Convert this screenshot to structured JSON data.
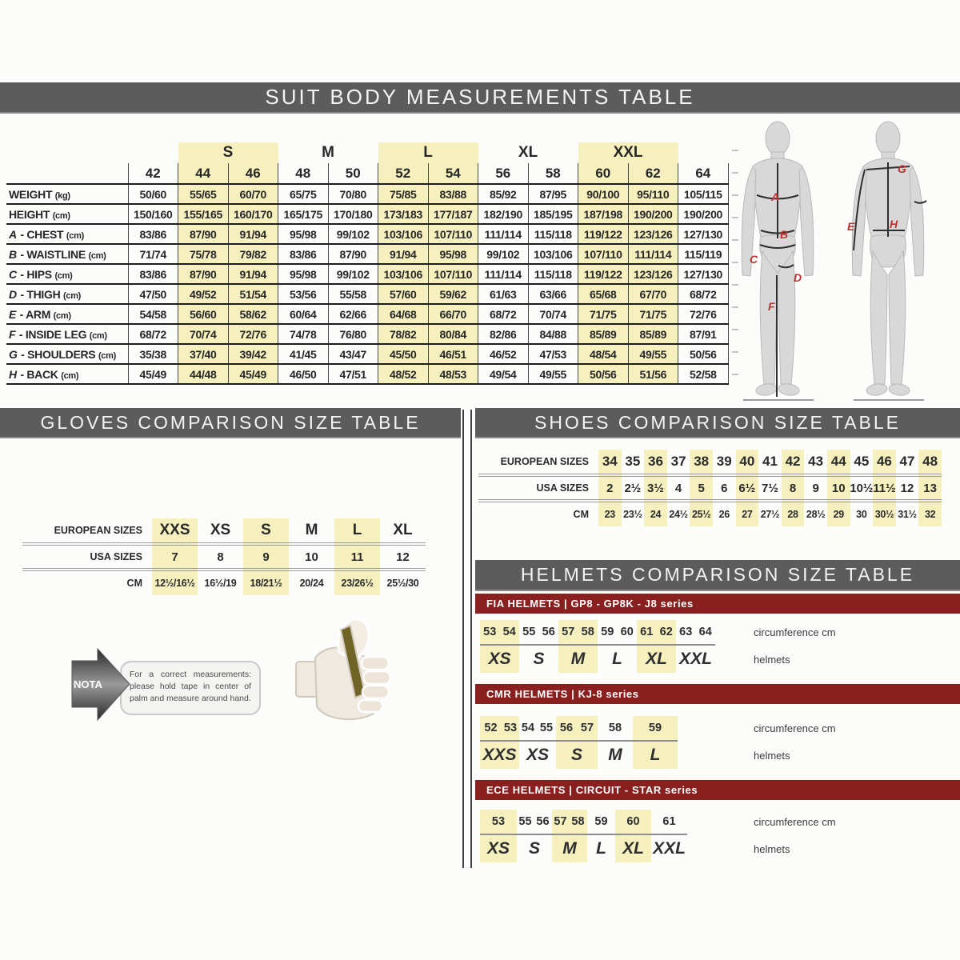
{
  "colors": {
    "header_bar": "#5c5c5c",
    "helmet_series_bar": "#8a1f1f",
    "highlight_yellow": "#f6f0bf",
    "figure_letter_red": "#c03030"
  },
  "suit": {
    "title": "SUIT BODY MEASUREMENTS TABLE",
    "groups": [
      {
        "label": "S",
        "span": 2,
        "highlight": true
      },
      {
        "label": "M",
        "span": 2,
        "highlight": false
      },
      {
        "label": "L",
        "span": 2,
        "highlight": true
      },
      {
        "label": "XL",
        "span": 2,
        "highlight": false
      },
      {
        "label": "XXL",
        "span": 2,
        "highlight": true
      }
    ],
    "sizes": [
      "42",
      "44",
      "46",
      "48",
      "50",
      "52",
      "54",
      "56",
      "58",
      "60",
      "62",
      "64"
    ],
    "highlight_columns": [
      1,
      2,
      5,
      6,
      9,
      10
    ],
    "rows": [
      {
        "prefix": "",
        "label": "WEIGHT",
        "unit": "(kg)",
        "values": [
          "50/60",
          "55/65",
          "60/70",
          "65/75",
          "70/80",
          "75/85",
          "83/88",
          "85/92",
          "87/95",
          "90/100",
          "95/110",
          "105/115"
        ]
      },
      {
        "prefix": "",
        "label": "HEIGHT",
        "unit": "(cm)",
        "values": [
          "150/160",
          "155/165",
          "160/170",
          "165/175",
          "170/180",
          "173/183",
          "177/187",
          "182/190",
          "185/195",
          "187/198",
          "190/200",
          "190/200"
        ]
      },
      {
        "prefix": "A",
        "label": "CHEST",
        "unit": "(cm)",
        "values": [
          "83/86",
          "87/90",
          "91/94",
          "95/98",
          "99/102",
          "103/106",
          "107/110",
          "111/114",
          "115/118",
          "119/122",
          "123/126",
          "127/130"
        ]
      },
      {
        "prefix": "B",
        "label": "WAISTLINE",
        "unit": "(cm)",
        "values": [
          "71/74",
          "75/78",
          "79/82",
          "83/86",
          "87/90",
          "91/94",
          "95/98",
          "99/102",
          "103/106",
          "107/110",
          "111/114",
          "115/119"
        ]
      },
      {
        "prefix": "C",
        "label": "HIPS",
        "unit": "(cm)",
        "values": [
          "83/86",
          "87/90",
          "91/94",
          "95/98",
          "99/102",
          "103/106",
          "107/110",
          "111/114",
          "115/118",
          "119/122",
          "123/126",
          "127/130"
        ]
      },
      {
        "prefix": "D",
        "label": "THIGH",
        "unit": "(cm)",
        "values": [
          "47/50",
          "49/52",
          "51/54",
          "53/56",
          "55/58",
          "57/60",
          "59/62",
          "61/63",
          "63/66",
          "65/68",
          "67/70",
          "68/72"
        ]
      },
      {
        "prefix": "E",
        "label": "ARM",
        "unit": "(cm)",
        "values": [
          "54/58",
          "56/60",
          "58/62",
          "60/64",
          "62/66",
          "64/68",
          "66/70",
          "68/72",
          "70/74",
          "71/75",
          "71/75",
          "72/76"
        ]
      },
      {
        "prefix": "F",
        "label": "INSIDE LEG",
        "unit": "(cm)",
        "values": [
          "68/72",
          "70/74",
          "72/76",
          "74/78",
          "76/80",
          "78/82",
          "80/84",
          "82/86",
          "84/88",
          "85/89",
          "85/89",
          "87/91"
        ]
      },
      {
        "prefix": "G",
        "label": "SHOULDERS",
        "unit": "(cm)",
        "values": [
          "35/38",
          "37/40",
          "39/42",
          "41/45",
          "43/47",
          "45/50",
          "46/51",
          "46/52",
          "47/53",
          "48/54",
          "49/55",
          "50/56"
        ]
      },
      {
        "prefix": "H",
        "label": "BACK",
        "unit": "(cm)",
        "values": [
          "45/49",
          "44/48",
          "45/49",
          "46/50",
          "47/51",
          "48/52",
          "48/53",
          "49/54",
          "49/55",
          "50/56",
          "51/56",
          "52/58"
        ]
      }
    ],
    "figure_letters_order": [
      "A",
      "B",
      "C",
      "D",
      "F",
      "G",
      "E",
      "H"
    ]
  },
  "gloves": {
    "title": "GLOVES COMPARISON SIZE TABLE",
    "row_labels": [
      "EUROPEAN SIZES",
      "USA SIZES",
      "CM"
    ],
    "european": [
      "XXS",
      "XS",
      "S",
      "M",
      "L",
      "XL"
    ],
    "usa": [
      "7",
      "8",
      "9",
      "10",
      "11",
      "12"
    ],
    "cm": [
      "12½/16½",
      "16½/19",
      "18/21½",
      "20/24",
      "23/26½",
      "25½/30"
    ],
    "highlight_columns": [
      0,
      2,
      4
    ],
    "nota_label": "NOTA",
    "note_text": "For a correct measurements: please hold tape in center of palm and measure around hand."
  },
  "shoes": {
    "title": "SHOES COMPARISON SIZE TABLE",
    "row_labels": [
      "EUROPEAN SIZES",
      "USA SIZES",
      "CM"
    ],
    "european": [
      "34",
      "35",
      "36",
      "37",
      "38",
      "39",
      "40",
      "41",
      "42",
      "43",
      "44",
      "45",
      "46",
      "47",
      "48"
    ],
    "usa": [
      "2",
      "2½",
      "3½",
      "4",
      "5",
      "6",
      "6½",
      "7½",
      "8",
      "9",
      "10",
      "10½",
      "11½",
      "12",
      "13"
    ],
    "cm": [
      "23",
      "23½",
      "24",
      "24½",
      "25½",
      "26",
      "27",
      "27½",
      "28",
      "28½",
      "29",
      "30",
      "30½",
      "31½",
      "32"
    ],
    "highlight_columns": [
      0,
      2,
      4,
      6,
      8,
      10,
      12,
      14
    ]
  },
  "helmets": {
    "title": "HELMETS COMPARISON SIZE TABLE",
    "col_label_circumference": "circumference cm",
    "col_label_helmets": "helmets",
    "blocks": [
      {
        "header": "FIA HELMETS | GP8 - GP8K - J8 series",
        "circumference": [
          "53",
          "54",
          "55",
          "56",
          "57",
          "58",
          "59",
          "60",
          "61",
          "62",
          "63",
          "64"
        ],
        "sizes": [
          {
            "label": "XS",
            "span": 2,
            "highlight": true
          },
          {
            "label": "S",
            "span": 2,
            "highlight": false
          },
          {
            "label": "M",
            "span": 2,
            "highlight": true
          },
          {
            "label": "L",
            "span": 2,
            "highlight": false
          },
          {
            "label": "XL",
            "span": 2,
            "highlight": true
          },
          {
            "label": "XXL",
            "span": 2,
            "highlight": false
          }
        ]
      },
      {
        "header": "CMR HELMETS | KJ-8 series",
        "circumference": [
          "52",
          "53",
          "54",
          "55",
          "56",
          "57",
          "58",
          "59"
        ],
        "sizes": [
          {
            "label": "XXS",
            "span": 2,
            "highlight": true
          },
          {
            "label": "XS",
            "span": 2,
            "highlight": false
          },
          {
            "label": "S",
            "span": 2,
            "highlight": true
          },
          {
            "label": "M",
            "span": 1,
            "highlight": false
          },
          {
            "label": "L",
            "span": 1,
            "highlight": true
          }
        ]
      },
      {
        "header": "ECE HELMETS | CIRCUIT - STAR series",
        "circumference": [
          "53",
          "55",
          "56",
          "57",
          "58",
          "59",
          "60",
          "61"
        ],
        "sizes": [
          {
            "label": "XS",
            "span": 1,
            "highlight": true
          },
          {
            "label": "S",
            "span": 2,
            "highlight": false
          },
          {
            "label": "M",
            "span": 2,
            "highlight": true
          },
          {
            "label": "L",
            "span": 1,
            "highlight": false
          },
          {
            "label": "XL",
            "span": 1,
            "highlight": true
          },
          {
            "label": "XXL",
            "span": 1,
            "highlight": false
          }
        ]
      }
    ]
  }
}
